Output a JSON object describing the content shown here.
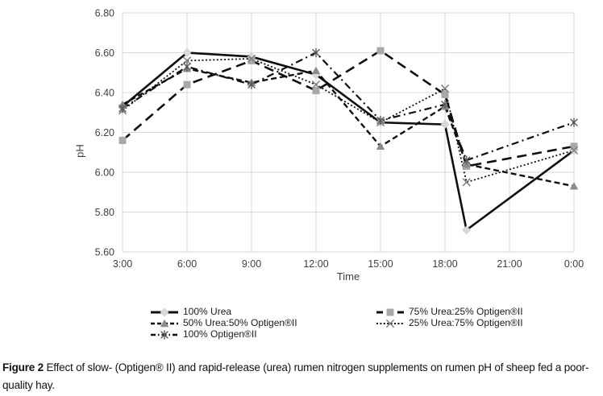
{
  "figure": {
    "background": "#ffffff"
  },
  "caption": {
    "label": "Figure 2",
    "text": "Effect of slow- (Optigen® II) and rapid-release (urea) rumen nitrogen supplements on rumen pH of sheep fed a poor-quality hay."
  },
  "chart_data": {
    "type": "line",
    "title": "",
    "xlabel": "Time",
    "ylabel": "pH",
    "ylim": [
      5.6,
      6.8
    ],
    "ytick_values": [
      6.8,
      6.6,
      6.4,
      6.2,
      6.0,
      5.8,
      5.6
    ],
    "ytick_labels": [
      "6.80",
      "6.60",
      "6.40",
      "6.20",
      "6.00",
      "5.80",
      "5.60"
    ],
    "xtick_hours": [
      3,
      6,
      9,
      12,
      15,
      18,
      21,
      24
    ],
    "xtick_labels": [
      "3:00",
      "6:00",
      "9:00",
      "12:00",
      "15:00",
      "18:00",
      "21:00",
      "0:00"
    ],
    "x_hours": [
      3,
      6,
      9,
      12,
      15,
      18,
      19,
      24
    ],
    "grid": true,
    "legend_position": "bottom",
    "colors": {
      "line": "#0f0f0f",
      "grid": "#d9d9d9",
      "axis_text": "#3f3f3f"
    },
    "series": [
      {
        "name": "100% Urea",
        "line_style": "solid",
        "marker": "diamond",
        "marker_color": "#d9d9d9",
        "values": [
          6.33,
          6.6,
          6.58,
          6.49,
          6.25,
          6.24,
          5.71,
          6.11
        ]
      },
      {
        "name": "75% Urea:25% Optigen®II",
        "line_style": "longdash",
        "marker": "square",
        "marker_color": "#a9a9a9",
        "values": [
          6.16,
          6.44,
          6.56,
          6.41,
          6.61,
          6.39,
          6.03,
          6.13
        ]
      },
      {
        "name": "50% Urea:50% Optigen®II",
        "line_style": "dash",
        "marker": "triangle",
        "marker_color": "#8c8c8c",
        "values": [
          6.34,
          6.52,
          6.45,
          6.51,
          6.13,
          6.33,
          6.04,
          5.93
        ]
      },
      {
        "name": "25% Urea:75% Optigen®II",
        "line_style": "dot",
        "marker": "x",
        "marker_color": "#7f7f7f",
        "values": [
          6.31,
          6.56,
          6.57,
          6.44,
          6.25,
          6.42,
          5.95,
          6.11
        ]
      },
      {
        "name": "100% Optigen®II",
        "line_style": "dashdot",
        "marker": "star",
        "marker_color": "#595959",
        "values": [
          6.32,
          6.53,
          6.44,
          6.6,
          6.26,
          6.34,
          6.06,
          6.25
        ]
      }
    ]
  }
}
